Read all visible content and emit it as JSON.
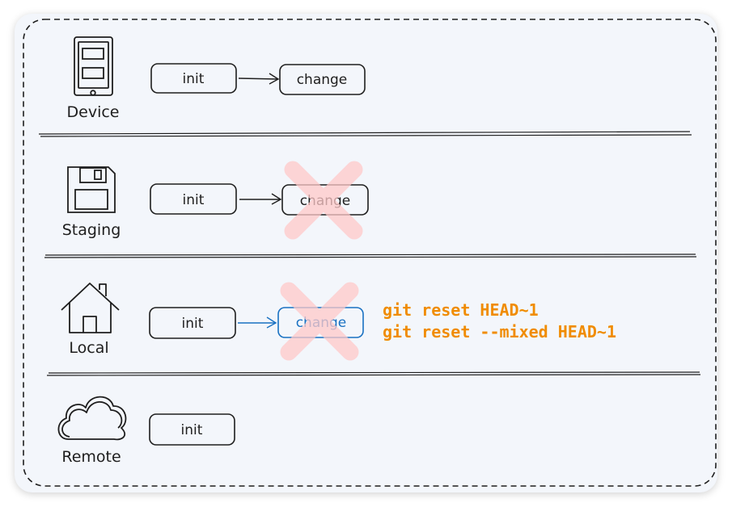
{
  "colors": {
    "ink": "#1e1e1e",
    "accent_blue": "#1971c2",
    "command_orange": "#f08c00",
    "cross_red": "#ffc9c9",
    "card_bg": "#f3f6fb"
  },
  "rows": [
    {
      "label": "Device",
      "icon": "phone-icon",
      "commits": [
        "init",
        "change"
      ],
      "crossed": false,
      "highlight": false
    },
    {
      "label": "Staging",
      "icon": "floppy-disk-icon",
      "commits": [
        "init",
        "change"
      ],
      "crossed": true,
      "highlight": false
    },
    {
      "label": "Local",
      "icon": "house-icon",
      "commits": [
        "init",
        "change"
      ],
      "crossed": true,
      "highlight": true
    },
    {
      "label": "Remote",
      "icon": "cloud-icon",
      "commits": [
        "init"
      ],
      "crossed": false,
      "highlight": false
    }
  ],
  "commands": [
    "git reset HEAD~1",
    "git reset --mixed HEAD~1"
  ]
}
